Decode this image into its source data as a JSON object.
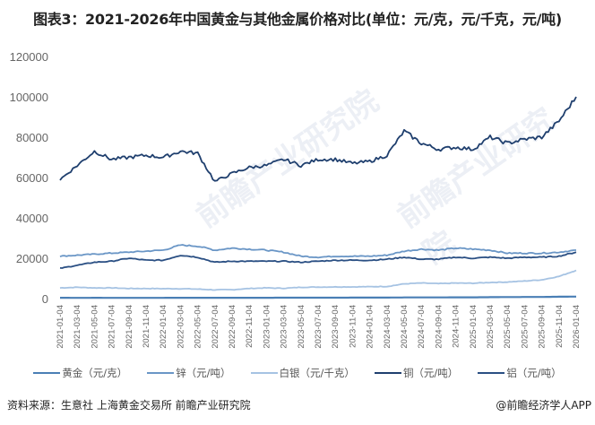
{
  "title": "图表3：2021-2026年中国黄金与其他金属价格对比(单位：元/克，元/千克，元/吨)",
  "source": "资料来源：生意社 上海黄金交易所 前瞻产业研究院",
  "credit": "@前瞻经济学人APP",
  "watermark": "前瞻产业研究院",
  "legend": [
    {
      "label": "黄金（元/克）",
      "color": "#4a7fb5"
    },
    {
      "label": "锌（元/吨）",
      "color": "#6a96c6"
    },
    {
      "label": "白银（元/千克）",
      "color": "#a6c3e3"
    },
    {
      "label": "铜（元/吨）",
      "color": "#1f3f6e"
    },
    {
      "label": "铝（元/吨）",
      "color": "#2a4f83"
    }
  ],
  "chart_data": {
    "type": "line",
    "title": "图表3：2021-2026年中国黄金与其他金属价格对比(单位：元/克，元/千克，元/吨)",
    "xlabel": "",
    "ylabel": "",
    "ylim": [
      0,
      120000
    ],
    "yticks": [
      0,
      20000,
      40000,
      60000,
      80000,
      100000,
      120000
    ],
    "grid": false,
    "legend_position": "bottom",
    "x": [
      "2021-01-04",
      "2021-03-04",
      "2021-05-04",
      "2021-07-04",
      "2021-09-04",
      "2021-11-04",
      "2022-01-04",
      "2022-03-04",
      "2022-05-04",
      "2022-07-04",
      "2022-09-04",
      "2022-11-04",
      "2023-01-04",
      "2023-03-04",
      "2023-05-04",
      "2023-07-04",
      "2023-09-04",
      "2023-11-04",
      "2024-01-04",
      "2024-03-04",
      "2024-05-04",
      "2024-07-04",
      "2024-09-04",
      "2024-11-04",
      "2025-01-04",
      "2025-03-04",
      "2025-05-04",
      "2025-07-04",
      "2025-09-04",
      "2025-11-04",
      "2026-01-04"
    ],
    "series": [
      {
        "name": "黄金（元/克）",
        "color": "#4a7fb5",
        "values": [
          390,
          370,
          380,
          375,
          370,
          375,
          375,
          400,
          395,
          380,
          385,
          405,
          420,
          425,
          455,
          450,
          455,
          470,
          480,
          500,
          560,
          560,
          570,
          620,
          620,
          690,
          770,
          780,
          800,
          920,
          980
        ]
      },
      {
        "name": "锌（元/吨）",
        "color": "#6a96c6",
        "values": [
          21000,
          21500,
          22000,
          22500,
          23000,
          23500,
          24000,
          26500,
          26000,
          24000,
          25000,
          24500,
          24000,
          23000,
          21000,
          20500,
          21000,
          21000,
          21000,
          21500,
          23500,
          24500,
          24000,
          25000,
          24500,
          24000,
          22500,
          22500,
          22500,
          23000,
          24000
        ]
      },
      {
        "name": "白银（元/千克）",
        "color": "#a6c3e3",
        "values": [
          5300,
          5600,
          5300,
          5300,
          5000,
          5000,
          4900,
          4900,
          4700,
          4300,
          4400,
          5000,
          5300,
          5100,
          5600,
          5700,
          5800,
          5800,
          5900,
          6000,
          7300,
          7700,
          7400,
          7700,
          7600,
          8000,
          8200,
          8700,
          9300,
          11000,
          14000
        ]
      },
      {
        "name": "铜（元/吨）",
        "color": "#1f3f6e",
        "values": [
          59000,
          66000,
          73000,
          69000,
          70000,
          71000,
          70000,
          73000,
          72000,
          58000,
          62000,
          65000,
          66000,
          69000,
          66000,
          69000,
          69000,
          67000,
          68000,
          71000,
          83000,
          77000,
          74000,
          75000,
          74000,
          80000,
          77000,
          79000,
          80000,
          88000,
          100000
        ]
      },
      {
        "name": "铝（元/吨）",
        "color": "#2a4f83",
        "values": [
          15000,
          16500,
          18000,
          18500,
          20000,
          19000,
          19000,
          21500,
          20500,
          18000,
          18500,
          18500,
          18500,
          18500,
          18000,
          18500,
          19000,
          19000,
          19000,
          19500,
          20500,
          19500,
          19500,
          20500,
          20000,
          20500,
          20000,
          20500,
          20500,
          21000,
          23000
        ]
      }
    ]
  }
}
